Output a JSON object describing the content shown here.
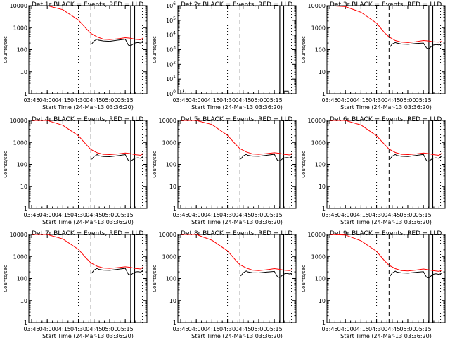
{
  "colors": {
    "events": "#000000",
    "lld": "#ff0000",
    "background": "#ffffff"
  },
  "common": {
    "xlabel": "Start Time (24-Mar-13 03:36:20)",
    "ylabel": "Counts/sec",
    "x_ticks": [
      "03:45",
      "04:00",
      "04:15",
      "04:30",
      "04:45",
      "05:00",
      "05:15"
    ],
    "y_ticks_normal": [
      "1",
      "10",
      "100",
      "1000",
      "10000"
    ]
  },
  "chart_data": [
    {
      "type": "line",
      "title": "Det 1r BLACK = Events, RED = LLD",
      "xlabel": "Start Time (24-Mar-13 03:36:20)",
      "ylabel": "Counts/sec",
      "y_scale": "log",
      "ylim": [
        1,
        10000
      ],
      "x_ticks": [
        "03:45",
        "04:00",
        "04:15",
        "04:30",
        "04:45",
        "05:00",
        "05:15"
      ],
      "y_ticks": [
        "1",
        "10",
        "100",
        "1000",
        "10000"
      ],
      "vlines": [
        {
          "t": 3.0,
          "style": "dotted"
        },
        {
          "t": 3.8,
          "style": "dashed"
        },
        {
          "t": 6.35,
          "style": "solid"
        },
        {
          "t": 6.6,
          "style": "solid"
        },
        {
          "t": 7.1,
          "style": "dotted"
        }
      ],
      "series": [
        {
          "color": "#ff0000",
          "t": [
            0,
            1,
            2,
            3,
            3.5,
            3.8,
            4.2,
            4.6,
            5.0,
            5.5,
            6.0,
            6.35,
            6.6,
            7.0,
            7.15
          ],
          "y": [
            10000,
            10000,
            6500,
            2200,
            900,
            550,
            380,
            300,
            290,
            310,
            350,
            330,
            300,
            280,
            350
          ]
        },
        {
          "color": "#000000",
          "t": [
            3.85,
            4.0,
            4.2,
            4.3,
            4.6,
            5.0,
            5.5,
            6.0,
            6.2,
            6.35,
            6.6,
            6.8,
            7.0,
            7.15
          ],
          "y": [
            180,
            250,
            300,
            270,
            250,
            240,
            270,
            300,
            160,
            150,
            200,
            210,
            200,
            260
          ]
        }
      ]
    },
    {
      "type": "line",
      "title": "Det 2r BLACK = Events, RED = LLD",
      "xlabel": "Start Time (24-Mar-13 03:36:20)",
      "ylabel": "Counts/sec",
      "y_scale": "log",
      "ylim": [
        1,
        1000000
      ],
      "x_ticks": [
        "03:45",
        "04:00",
        "04:15",
        "04:30",
        "04:45",
        "05:00",
        "05:15"
      ],
      "y_ticks": [
        "10^0",
        "10^1",
        "10^2",
        "10^3",
        "10^4",
        "10^5",
        "10^6"
      ],
      "vlines": [
        {
          "t": 3.0,
          "style": "dotted"
        },
        {
          "t": 3.8,
          "style": "dashed"
        },
        {
          "t": 6.35,
          "style": "solid"
        },
        {
          "t": 6.6,
          "style": "solid"
        },
        {
          "t": 7.1,
          "style": "dotted"
        }
      ],
      "series": [
        {
          "color": "#000000",
          "t": [
            0,
            0.15,
            0.2,
            0.2
          ],
          "y": [
            1.3,
            1.3,
            2,
            1
          ]
        },
        {
          "color": "#000000",
          "t": [
            6.6,
            6.9,
            6.9
          ],
          "y": [
            1.5,
            1.5,
            1
          ]
        }
      ]
    },
    {
      "type": "line",
      "title": "Det 3r BLACK = Events, RED = LLD",
      "xlabel": "Start Time (24-Mar-13 03:36:20)",
      "ylabel": "Counts/sec",
      "y_scale": "log",
      "ylim": [
        1,
        10000
      ],
      "x_ticks": [
        "03:45",
        "04:00",
        "04:15",
        "04:30",
        "04:45",
        "05:00",
        "05:15"
      ],
      "y_ticks": [
        "1",
        "10",
        "100",
        "1000",
        "10000"
      ],
      "vlines": [
        {
          "t": 3.0,
          "style": "dotted"
        },
        {
          "t": 3.8,
          "style": "dashed"
        },
        {
          "t": 6.35,
          "style": "solid"
        },
        {
          "t": 6.6,
          "style": "solid"
        },
        {
          "t": 7.1,
          "style": "dotted"
        }
      ],
      "series": [
        {
          "color": "#ff0000",
          "t": [
            0,
            1,
            2,
            3,
            3.5,
            3.8,
            4.2,
            4.6,
            5.0,
            5.5,
            6.0,
            6.35,
            6.6,
            7.0,
            7.15
          ],
          "y": [
            10000,
            9000,
            5000,
            1600,
            600,
            380,
            260,
            220,
            210,
            230,
            260,
            250,
            230,
            220,
            240
          ]
        },
        {
          "color": "#000000",
          "t": [
            3.85,
            4.0,
            4.2,
            4.3,
            4.6,
            5.0,
            5.5,
            6.0,
            6.2,
            6.35,
            6.6,
            6.8,
            7.0,
            7.15
          ],
          "y": [
            130,
            180,
            210,
            200,
            180,
            175,
            190,
            200,
            120,
            110,
            160,
            170,
            165,
            175
          ]
        }
      ]
    },
    {
      "type": "line",
      "title": "Det 4r BLACK = Events, RED = LLD",
      "xlabel": "Start Time (24-Mar-13 03:36:20)",
      "ylabel": "Counts/sec",
      "y_scale": "log",
      "ylim": [
        1,
        10000
      ],
      "x_ticks": [
        "03:45",
        "04:00",
        "04:15",
        "04:30",
        "04:45",
        "05:00",
        "05:15"
      ],
      "y_ticks": [
        "1",
        "10",
        "100",
        "1000",
        "10000"
      ],
      "vlines": [
        {
          "t": 3.0,
          "style": "dotted"
        },
        {
          "t": 3.8,
          "style": "dashed"
        },
        {
          "t": 6.35,
          "style": "solid"
        },
        {
          "t": 6.6,
          "style": "solid"
        },
        {
          "t": 7.1,
          "style": "dotted"
        }
      ],
      "series": [
        {
          "color": "#ff0000",
          "t": [
            0,
            1,
            2,
            3,
            3.5,
            3.8,
            4.2,
            4.6,
            5.0,
            5.5,
            6.0,
            6.35,
            6.6,
            7.0,
            7.15
          ],
          "y": [
            10000,
            10000,
            6000,
            2000,
            800,
            480,
            340,
            290,
            280,
            300,
            330,
            310,
            280,
            260,
            330
          ]
        },
        {
          "color": "#000000",
          "t": [
            3.85,
            4.0,
            4.2,
            4.3,
            4.6,
            5.0,
            5.5,
            6.0,
            6.2,
            6.35,
            6.6,
            6.8,
            7.0,
            7.15
          ],
          "y": [
            170,
            230,
            280,
            250,
            230,
            225,
            250,
            280,
            150,
            140,
            190,
            200,
            190,
            230
          ]
        }
      ]
    },
    {
      "type": "line",
      "title": "Det 5r BLACK = Events, RED = LLD",
      "xlabel": "Start Time (24-Mar-13 03:36:20)",
      "ylabel": "Counts/sec",
      "y_scale": "log",
      "ylim": [
        1,
        10000
      ],
      "x_ticks": [
        "03:45",
        "04:00",
        "04:15",
        "04:30",
        "04:45",
        "05:00",
        "05:15"
      ],
      "y_ticks": [
        "1",
        "10",
        "100",
        "1000",
        "10000"
      ],
      "vlines": [
        {
          "t": 3.0,
          "style": "dotted"
        },
        {
          "t": 3.8,
          "style": "dashed"
        },
        {
          "t": 6.35,
          "style": "solid"
        },
        {
          "t": 6.6,
          "style": "solid"
        },
        {
          "t": 7.1,
          "style": "dotted"
        }
      ],
      "series": [
        {
          "color": "#ff0000",
          "t": [
            0,
            1,
            2,
            3,
            3.5,
            3.8,
            4.2,
            4.6,
            5.0,
            5.5,
            6.0,
            6.35,
            6.6,
            7.0,
            7.15
          ],
          "y": [
            10000,
            10000,
            6500,
            2100,
            850,
            520,
            370,
            300,
            290,
            310,
            340,
            320,
            290,
            270,
            330
          ]
        },
        {
          "color": "#000000",
          "t": [
            3.85,
            4.0,
            4.2,
            4.3,
            4.6,
            5.0,
            5.5,
            6.0,
            6.2,
            6.35,
            6.6,
            6.8,
            7.0,
            7.15
          ],
          "y": [
            175,
            240,
            290,
            260,
            240,
            235,
            260,
            290,
            155,
            145,
            195,
            205,
            195,
            240
          ]
        }
      ]
    },
    {
      "type": "line",
      "title": "Det 6r BLACK = Events, RED = LLD",
      "xlabel": "Start Time (24-Mar-13 03:36:20)",
      "ylabel": "Counts/sec",
      "y_scale": "log",
      "ylim": [
        1,
        10000
      ],
      "x_ticks": [
        "03:45",
        "04:00",
        "04:15",
        "04:30",
        "04:45",
        "05:00",
        "05:15"
      ],
      "y_ticks": [
        "1",
        "10",
        "100",
        "1000",
        "10000"
      ],
      "vlines": [
        {
          "t": 3.0,
          "style": "dotted"
        },
        {
          "t": 3.8,
          "style": "dashed"
        },
        {
          "t": 6.35,
          "style": "solid"
        },
        {
          "t": 6.6,
          "style": "solid"
        },
        {
          "t": 7.1,
          "style": "dotted"
        }
      ],
      "series": [
        {
          "color": "#ff0000",
          "t": [
            0,
            1,
            2,
            3,
            3.5,
            3.8,
            4.2,
            4.6,
            5.0,
            5.5,
            6.0,
            6.35,
            6.6,
            7.0,
            7.15
          ],
          "y": [
            10000,
            10000,
            6200,
            2000,
            820,
            500,
            350,
            290,
            280,
            300,
            330,
            310,
            280,
            260,
            320
          ]
        },
        {
          "color": "#000000",
          "t": [
            3.85,
            4.0,
            4.2,
            4.3,
            4.6,
            5.0,
            5.5,
            6.0,
            6.2,
            6.35,
            6.6,
            6.8,
            7.0,
            7.15
          ],
          "y": [
            170,
            235,
            285,
            255,
            235,
            230,
            255,
            285,
            150,
            140,
            190,
            200,
            190,
            235
          ]
        }
      ]
    },
    {
      "type": "line",
      "title": "Det 7r BLACK = Events, RED = LLD",
      "xlabel": "Start Time (24-Mar-13 03:36:20)",
      "ylabel": "Counts/sec",
      "y_scale": "log",
      "ylim": [
        1,
        10000
      ],
      "x_ticks": [
        "03:45",
        "04:00",
        "04:15",
        "04:30",
        "04:45",
        "05:00",
        "05:15"
      ],
      "y_ticks": [
        "1",
        "10",
        "100",
        "1000",
        "10000"
      ],
      "vlines": [
        {
          "t": 3.0,
          "style": "dotted"
        },
        {
          "t": 3.8,
          "style": "dashed"
        },
        {
          "t": 6.35,
          "style": "solid"
        },
        {
          "t": 6.6,
          "style": "solid"
        },
        {
          "t": 7.1,
          "style": "dotted"
        }
      ],
      "series": [
        {
          "color": "#ff0000",
          "t": [
            0,
            1,
            2,
            3,
            3.5,
            3.8,
            4.2,
            4.6,
            5.0,
            5.5,
            6.0,
            6.35,
            6.6,
            7.0,
            7.15
          ],
          "y": [
            10000,
            10000,
            6300,
            2100,
            830,
            510,
            360,
            300,
            290,
            310,
            340,
            320,
            290,
            270,
            340
          ]
        },
        {
          "color": "#000000",
          "t": [
            3.85,
            4.0,
            4.2,
            4.3,
            4.6,
            5.0,
            5.5,
            6.0,
            6.2,
            6.35,
            6.6,
            6.8,
            7.0,
            7.15
          ],
          "y": [
            175,
            240,
            290,
            260,
            240,
            235,
            260,
            290,
            155,
            145,
            195,
            205,
            195,
            240
          ]
        }
      ]
    },
    {
      "type": "line",
      "title": "Det 8r BLACK = Events, RED = LLD",
      "xlabel": "Start Time (24-Mar-13 03:36:20)",
      "ylabel": "Counts/sec",
      "y_scale": "log",
      "ylim": [
        1,
        10000
      ],
      "x_ticks": [
        "03:45",
        "04:00",
        "04:15",
        "04:30",
        "04:45",
        "05:00",
        "05:15"
      ],
      "y_ticks": [
        "1",
        "10",
        "100",
        "1000",
        "10000"
      ],
      "vlines": [
        {
          "t": 3.0,
          "style": "dotted"
        },
        {
          "t": 3.8,
          "style": "dashed"
        },
        {
          "t": 6.35,
          "style": "solid"
        },
        {
          "t": 6.6,
          "style": "solid"
        },
        {
          "t": 7.1,
          "style": "dotted"
        }
      ],
      "series": [
        {
          "color": "#ff0000",
          "t": [
            0,
            1,
            2,
            3,
            3.5,
            3.8,
            4.2,
            4.6,
            5.0,
            5.5,
            6.0,
            6.35,
            6.6,
            7.0,
            7.15
          ],
          "y": [
            10000,
            10000,
            5500,
            1800,
            700,
            420,
            300,
            240,
            230,
            250,
            280,
            260,
            240,
            230,
            260
          ]
        },
        {
          "color": "#000000",
          "t": [
            3.85,
            4.0,
            4.2,
            4.3,
            4.6,
            5.0,
            5.5,
            6.0,
            6.2,
            6.35,
            6.6,
            6.8,
            7.0,
            7.15
          ],
          "y": [
            130,
            180,
            220,
            200,
            185,
            180,
            195,
            210,
            120,
            110,
            160,
            170,
            160,
            175
          ]
        }
      ]
    },
    {
      "type": "line",
      "title": "Det 9r BLACK = Events, RED = LLD",
      "xlabel": "Start Time (24-Mar-13 03:36:20)",
      "ylabel": "Counts/sec",
      "y_scale": "log",
      "ylim": [
        1,
        10000
      ],
      "x_ticks": [
        "03:45",
        "04:00",
        "04:15",
        "04:30",
        "04:45",
        "05:00",
        "05:15"
      ],
      "y_ticks": [
        "1",
        "10",
        "100",
        "1000",
        "10000"
      ],
      "vlines": [
        {
          "t": 3.0,
          "style": "dotted"
        },
        {
          "t": 3.8,
          "style": "dashed"
        },
        {
          "t": 6.35,
          "style": "solid"
        },
        {
          "t": 6.6,
          "style": "solid"
        },
        {
          "t": 7.1,
          "style": "dotted"
        }
      ],
      "series": [
        {
          "color": "#ff0000",
          "t": [
            0,
            1,
            2,
            3,
            3.5,
            3.8,
            4.2,
            4.6,
            5.0,
            5.5,
            6.0,
            6.35,
            6.6,
            7.0,
            7.15
          ],
          "y": [
            10000,
            9500,
            5200,
            1700,
            650,
            400,
            280,
            230,
            220,
            240,
            270,
            250,
            230,
            210,
            230
          ]
        },
        {
          "color": "#000000",
          "t": [
            3.85,
            4.0,
            4.2,
            4.3,
            4.6,
            5.0,
            5.5,
            6.0,
            6.2,
            6.35,
            6.6,
            6.8,
            7.0,
            7.15
          ],
          "y": [
            125,
            175,
            215,
            195,
            180,
            175,
            190,
            205,
            115,
            105,
            155,
            165,
            155,
            170
          ]
        }
      ]
    }
  ]
}
